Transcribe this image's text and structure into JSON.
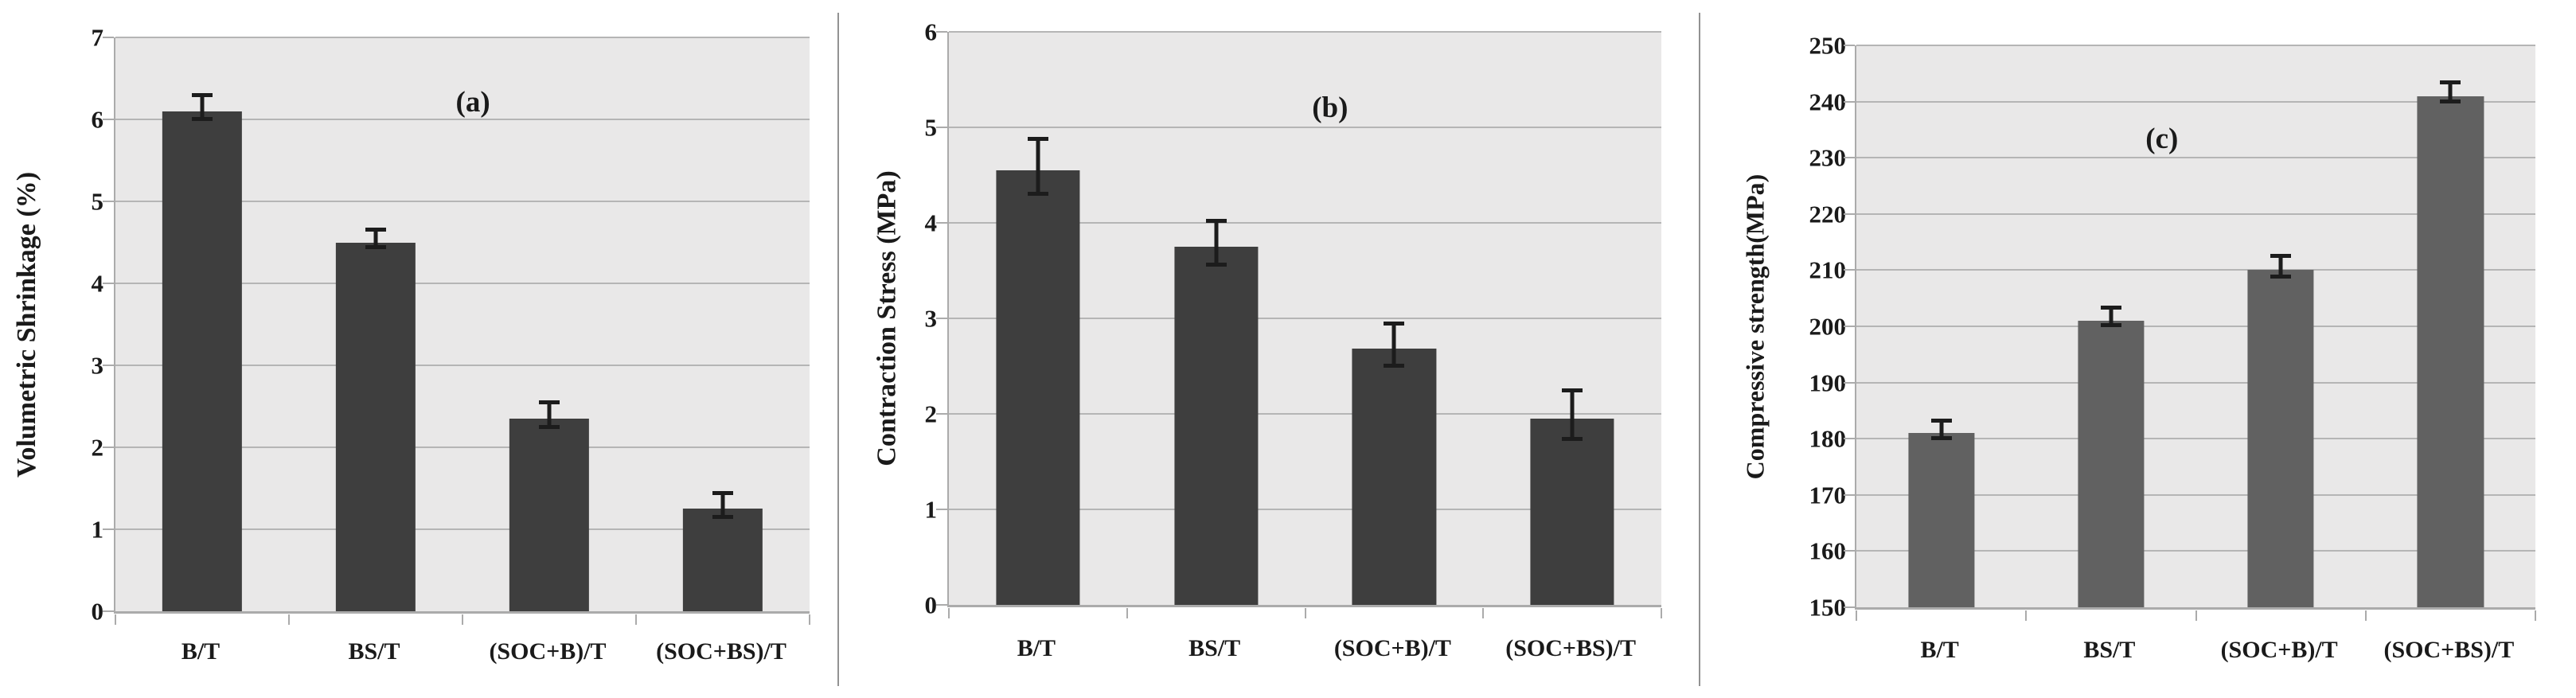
{
  "figure": {
    "background": "#ffffff",
    "plot_background": "#e9e8e8",
    "gridline_color": "#b5b5b5",
    "axis_color": "#ababab",
    "error_bar_color": "#1c1c1c",
    "divider_color": "#929292"
  },
  "chart_data": [
    {
      "type": "bar",
      "panel_label": "(a)",
      "title": "",
      "xlabel": "",
      "ylabel": "Volumetric Shrinkage (%)",
      "categories": [
        "B/T",
        "BS/T",
        "(SOC+B)/T",
        "(SOC+BS)/T"
      ],
      "values": [
        6.1,
        4.5,
        2.35,
        1.25
      ],
      "errors": [
        0.12,
        0.08,
        0.13,
        0.12
      ],
      "ylim": [
        0,
        7
      ],
      "ystep": 1,
      "ytick_labels": [
        "0",
        "1",
        "2",
        "3",
        "4",
        "5",
        "6",
        "7"
      ],
      "bar_color": "#3e3e3e",
      "grid": true,
      "legend": false
    },
    {
      "type": "bar",
      "panel_label": "(b)",
      "title": "",
      "xlabel": "",
      "ylabel": "Contraction Stress (MPa)",
      "categories": [
        "B/T",
        "BS/T",
        "(SOC+B)/T",
        "(SOC+BS)/T"
      ],
      "values": [
        4.55,
        3.75,
        2.68,
        1.95
      ],
      "errors": [
        0.27,
        0.21,
        0.2,
        0.23
      ],
      "ylim": [
        0,
        6
      ],
      "ystep": 1,
      "ytick_labels": [
        "0",
        "1",
        "2",
        "3",
        "4",
        "5",
        "6"
      ],
      "bar_color": "#3e3e3e",
      "grid": true,
      "legend": false
    },
    {
      "type": "bar",
      "panel_label": "(c)",
      "title": "",
      "xlabel": "",
      "ylabel": "Compressive strength(MPa)",
      "categories": [
        "B/T",
        "BS/T",
        "(SOC+B)/T",
        "(SOC+BS)/T"
      ],
      "values": [
        181,
        201,
        210,
        241
      ],
      "errors": [
        1.2,
        1.2,
        1.5,
        1.3
      ],
      "ylim": [
        150,
        250
      ],
      "ystep": 10,
      "ytick_labels": [
        "150",
        "160",
        "170",
        "180",
        "190",
        "200",
        "210",
        "220",
        "230",
        "240",
        "250"
      ],
      "bar_color": "#616161",
      "grid": true,
      "legend": false
    }
  ]
}
